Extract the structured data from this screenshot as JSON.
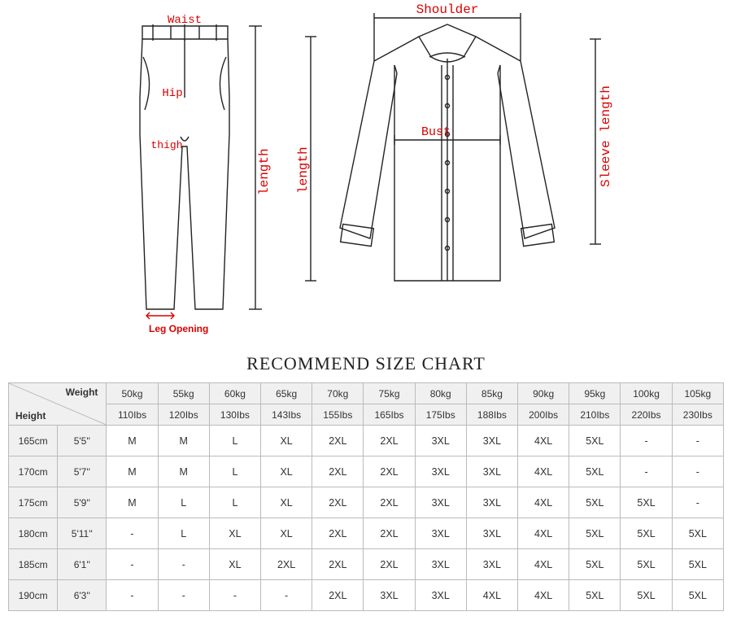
{
  "diagram": {
    "labels": {
      "waist": "Waist",
      "hip": "Hip",
      "thigh": "thigh",
      "leg_opening": "Leg Opening",
      "pants_length": "length",
      "shirt_length": "length",
      "shoulder": "Shoulder",
      "bust": "Bust",
      "sleeve_length": "Sleeve length"
    },
    "colors": {
      "label_red": "#d90000",
      "stroke": "#222222",
      "bg": "#ffffff"
    }
  },
  "chart": {
    "title": "RECOMMEND SIZE CHART",
    "corner": {
      "weight": "Weight",
      "height": "Height"
    },
    "weights_kg": [
      "50kg",
      "55kg",
      "60kg",
      "65kg",
      "70kg",
      "75kg",
      "80kg",
      "85kg",
      "90kg",
      "95kg",
      "100kg",
      "105kg"
    ],
    "weights_lbs": [
      "110Ibs",
      "120Ibs",
      "130Ibs",
      "143Ibs",
      "155Ibs",
      "165Ibs",
      "175Ibs",
      "188Ibs",
      "200Ibs",
      "210Ibs",
      "220Ibs",
      "230Ibs"
    ],
    "heights": [
      {
        "cm": "165cm",
        "ft": "5'5''"
      },
      {
        "cm": "170cm",
        "ft": "5'7''"
      },
      {
        "cm": "175cm",
        "ft": "5'9''"
      },
      {
        "cm": "180cm",
        "ft": "5'11''"
      },
      {
        "cm": "185cm",
        "ft": "6'1''"
      },
      {
        "cm": "190cm",
        "ft": "6'3''"
      }
    ],
    "cells": [
      [
        "M",
        "M",
        "L",
        "XL",
        "2XL",
        "2XL",
        "3XL",
        "3XL",
        "4XL",
        "5XL",
        "-",
        "-"
      ],
      [
        "M",
        "M",
        "L",
        "XL",
        "2XL",
        "2XL",
        "3XL",
        "3XL",
        "4XL",
        "5XL",
        "-",
        "-"
      ],
      [
        "M",
        "L",
        "L",
        "XL",
        "2XL",
        "2XL",
        "3XL",
        "3XL",
        "4XL",
        "5XL",
        "5XL",
        "-"
      ],
      [
        "-",
        "L",
        "XL",
        "XL",
        "2XL",
        "2XL",
        "3XL",
        "3XL",
        "4XL",
        "5XL",
        "5XL",
        "5XL"
      ],
      [
        "-",
        "-",
        "XL",
        "2XL",
        "2XL",
        "2XL",
        "3XL",
        "3XL",
        "4XL",
        "5XL",
        "5XL",
        "5XL"
      ],
      [
        "-",
        "-",
        "-",
        "-",
        "2XL",
        "3XL",
        "3XL",
        "4XL",
        "4XL",
        "5XL",
        "5XL",
        "5XL"
      ]
    ]
  }
}
